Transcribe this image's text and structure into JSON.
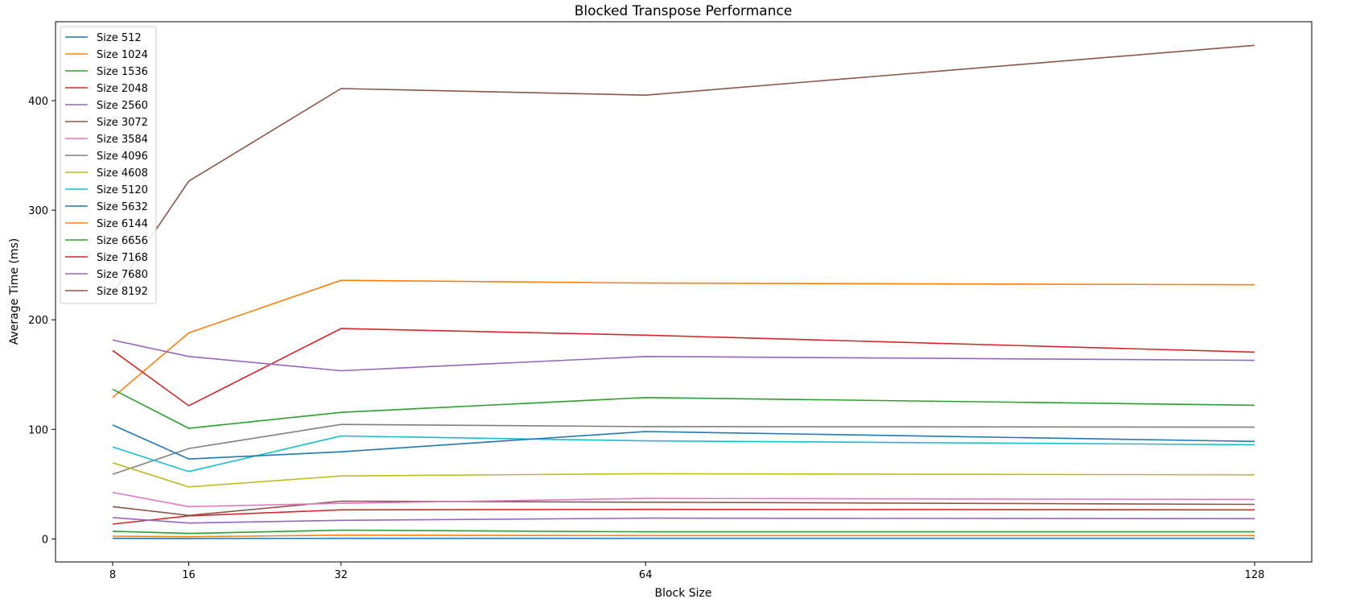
{
  "chart_data": {
    "type": "line",
    "title": "Blocked Transpose Performance",
    "xlabel": "Block Size",
    "ylabel": "Average Time (ms)",
    "x": [
      8,
      16,
      32,
      64,
      128
    ],
    "xticks": [
      8,
      16,
      32,
      64,
      128
    ],
    "yticks": [
      0,
      100,
      200,
      300,
      400
    ],
    "xlim": [
      2,
      134
    ],
    "ylim": [
      -21,
      472
    ],
    "legend_position": "upper-left",
    "grid": false,
    "series": [
      {
        "name": "Size 512",
        "color": "#1f77b4",
        "values": [
          0.5,
          0.4,
          0.5,
          0.5,
          0.5
        ]
      },
      {
        "name": "Size 1024",
        "color": "#ff7f0e",
        "values": [
          2.5,
          2.0,
          3.5,
          3.0,
          3.0
        ]
      },
      {
        "name": "Size 1536",
        "color": "#2ca02c",
        "values": [
          7.0,
          5.0,
          8.0,
          6.5,
          6.5
        ]
      },
      {
        "name": "Size 2048",
        "color": "#d62728",
        "values": [
          13.5,
          21.0,
          26.5,
          27.0,
          26.5
        ]
      },
      {
        "name": "Size 2560",
        "color": "#9467bd",
        "values": [
          19.5,
          14.5,
          17.0,
          19.0,
          18.5
        ]
      },
      {
        "name": "Size 3072",
        "color": "#8c564b",
        "values": [
          29.5,
          21.5,
          34.5,
          33.5,
          31.5
        ]
      },
      {
        "name": "Size 3584",
        "color": "#e377c2",
        "values": [
          42.5,
          29.5,
          32.5,
          37.0,
          36.0
        ]
      },
      {
        "name": "Size 4096",
        "color": "#7f7f7f",
        "values": [
          59.0,
          82.5,
          104.5,
          102.5,
          102.0
        ]
      },
      {
        "name": "Size 4608",
        "color": "#bcbd22",
        "values": [
          69.5,
          47.5,
          57.5,
          59.5,
          58.5
        ]
      },
      {
        "name": "Size 5120",
        "color": "#17becf",
        "values": [
          84.0,
          61.5,
          94.0,
          89.5,
          86.0
        ]
      },
      {
        "name": "Size 5632",
        "color": "#1f77b4",
        "values": [
          104.0,
          73.0,
          79.5,
          98.0,
          89.0
        ]
      },
      {
        "name": "Size 6144",
        "color": "#ff7f0e",
        "values": [
          129.0,
          188.0,
          236.0,
          233.5,
          232.0
        ]
      },
      {
        "name": "Size 6656",
        "color": "#2ca02c",
        "values": [
          136.5,
          101.0,
          115.5,
          129.0,
          122.0
        ]
      },
      {
        "name": "Size 7168",
        "color": "#d62728",
        "values": [
          172.0,
          121.5,
          192.0,
          186.0,
          170.5
        ]
      },
      {
        "name": "Size 7680",
        "color": "#9467bd",
        "values": [
          181.5,
          166.5,
          153.5,
          166.5,
          163.0
        ]
      },
      {
        "name": "Size 8192",
        "color": "#8c564b",
        "values": [
          224.0,
          326.5,
          411.0,
          405.0,
          450.5
        ]
      }
    ]
  }
}
